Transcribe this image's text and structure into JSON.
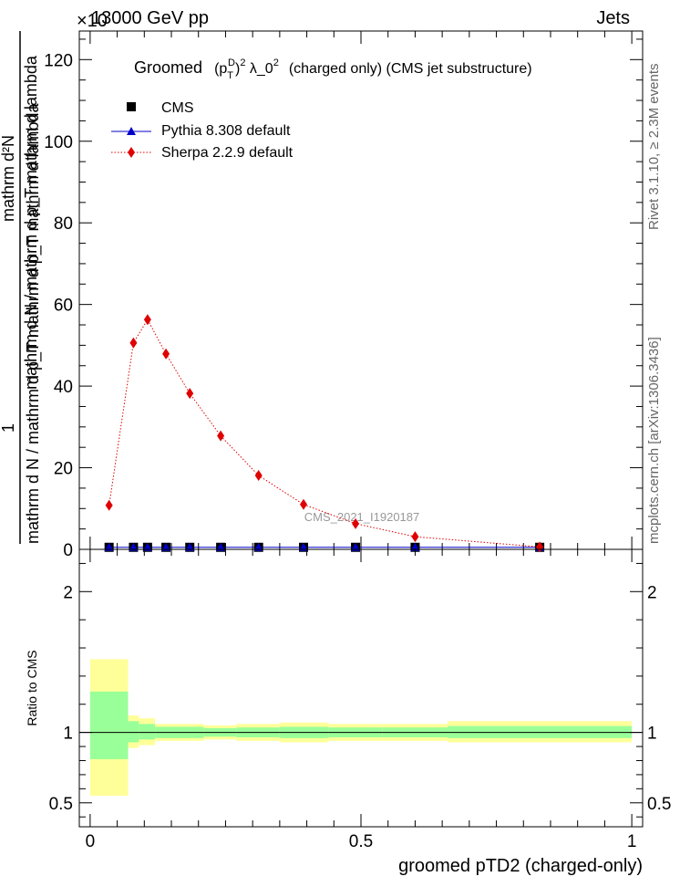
{
  "header": {
    "left": "13000 GeV pp",
    "right": "Jets",
    "exponent": "×10"
  },
  "side_labels": {
    "rivet": "Rivet 3.1.10, ≥ 2.3M events",
    "mcplots": "mcplots.cern.ch [arXiv:1306.3436]"
  },
  "colors": {
    "cms": "#000000",
    "pythia": "#0000cc",
    "sherpa": "#e00000",
    "band_inner": "#99ff99",
    "band_outer": "#ffff99"
  },
  "chart_data": [
    {
      "type": "line",
      "title": "Groomed (p_T^D)^2 λ_0^2 (charged only) (CMS jet substructure)",
      "title_parts": {
        "groomed": "Groomed",
        "rest": "(charged only) (CMS jet substructure)"
      },
      "ylabel": "mathrm d N / mathrm d p_T mathrm d lambda",
      "ylabel_top": "mathrm d²N",
      "ylabel_num": "1",
      "ylabel_den": "mathrm d N / mathrm d p_T mathrm d p_T mathrm d lambda",
      "ylim": [
        0,
        127
      ],
      "yticks": [
        0,
        20,
        40,
        60,
        80,
        100,
        120
      ],
      "xlim": [
        -0.02,
        1.02
      ],
      "watermark": "CMS_2021_I1920187",
      "x": [
        0.035,
        0.08,
        0.106,
        0.14,
        0.184,
        0.241,
        0.311,
        0.394,
        0.49,
        0.6,
        0.83
      ],
      "series": [
        {
          "name": "CMS",
          "marker": "square",
          "values": [
            0.5,
            0.5,
            0.5,
            0.5,
            0.5,
            0.5,
            0.5,
            0.5,
            0.5,
            0.5,
            0.5
          ]
        },
        {
          "name": "Pythia 8.308 default",
          "marker": "triangle",
          "values": [
            0.5,
            0.5,
            0.5,
            0.5,
            0.5,
            0.5,
            0.5,
            0.5,
            0.5,
            0.5,
            0.5
          ]
        },
        {
          "name": "Sherpa 2.2.9 default",
          "marker": "diamond",
          "values": [
            10.8,
            50.6,
            56.3,
            47.9,
            38.2,
            27.8,
            18.1,
            11,
            6.3,
            3.1,
            0.6
          ]
        }
      ],
      "legend": "top-left"
    },
    {
      "type": "area",
      "ylabel": "Ratio to CMS",
      "xlabel": "groomed pTD2 (charged-only)",
      "ylim": [
        0.33,
        2.3
      ],
      "yticks": [
        0.5,
        1,
        2
      ],
      "ytick_labels": [
        "0.5",
        "1",
        "2"
      ],
      "xticks": [
        0,
        0.5,
        1
      ],
      "xtick_labels": [
        "0",
        "0.5",
        "1"
      ],
      "xlim": [
        -0.02,
        1.02
      ],
      "bins": [
        {
          "lo": 0.0,
          "hi": 0.07,
          "inner": [
            0.81,
            1.29
          ],
          "outer": [
            0.55,
            1.52
          ]
        },
        {
          "lo": 0.07,
          "hi": 0.09,
          "inner": [
            0.93,
            1.08
          ],
          "outer": [
            0.89,
            1.12
          ]
        },
        {
          "lo": 0.09,
          "hi": 0.12,
          "inner": [
            0.95,
            1.06
          ],
          "outer": [
            0.91,
            1.1
          ]
        },
        {
          "lo": 0.12,
          "hi": 0.21,
          "inner": [
            0.96,
            1.04
          ],
          "outer": [
            0.94,
            1.06
          ]
        },
        {
          "lo": 0.21,
          "hi": 0.27,
          "inner": [
            0.97,
            1.03
          ],
          "outer": [
            0.95,
            1.05
          ]
        },
        {
          "lo": 0.27,
          "hi": 0.35,
          "inner": [
            0.965,
            1.035
          ],
          "outer": [
            0.94,
            1.06
          ]
        },
        {
          "lo": 0.35,
          "hi": 0.44,
          "inner": [
            0.96,
            1.04
          ],
          "outer": [
            0.93,
            1.07
          ]
        },
        {
          "lo": 0.44,
          "hi": 0.54,
          "inner": [
            0.965,
            1.035
          ],
          "outer": [
            0.94,
            1.06
          ]
        },
        {
          "lo": 0.54,
          "hi": 0.66,
          "inner": [
            0.965,
            1.035
          ],
          "outer": [
            0.94,
            1.06
          ]
        },
        {
          "lo": 0.66,
          "hi": 1.0,
          "inner": [
            0.96,
            1.045
          ],
          "outer": [
            0.93,
            1.08
          ]
        }
      ],
      "reference": 1
    }
  ]
}
